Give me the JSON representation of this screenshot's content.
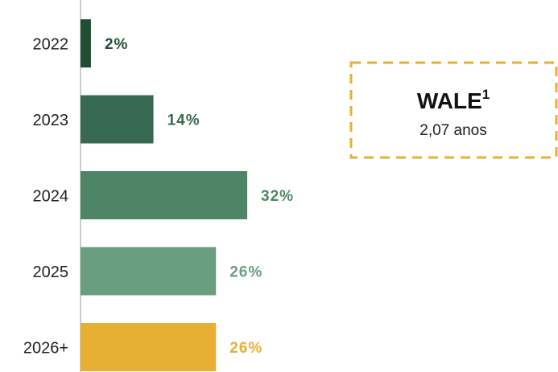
{
  "chart_data": {
    "type": "bar",
    "orientation": "horizontal",
    "categories": [
      "2022",
      "2023",
      "2024",
      "2025",
      "2026+"
    ],
    "values": [
      2,
      14,
      32,
      26,
      26
    ],
    "value_labels": [
      "2%",
      "14%",
      "32%",
      "26%",
      "26%"
    ],
    "colors": [
      "#1f4e35",
      "#376850",
      "#4e8566",
      "#6a9e80",
      "#e8b032"
    ],
    "xlim": [
      0,
      100
    ],
    "annotation": {
      "title": "WALE",
      "superscript": "1",
      "text": "2,07 anos"
    }
  }
}
